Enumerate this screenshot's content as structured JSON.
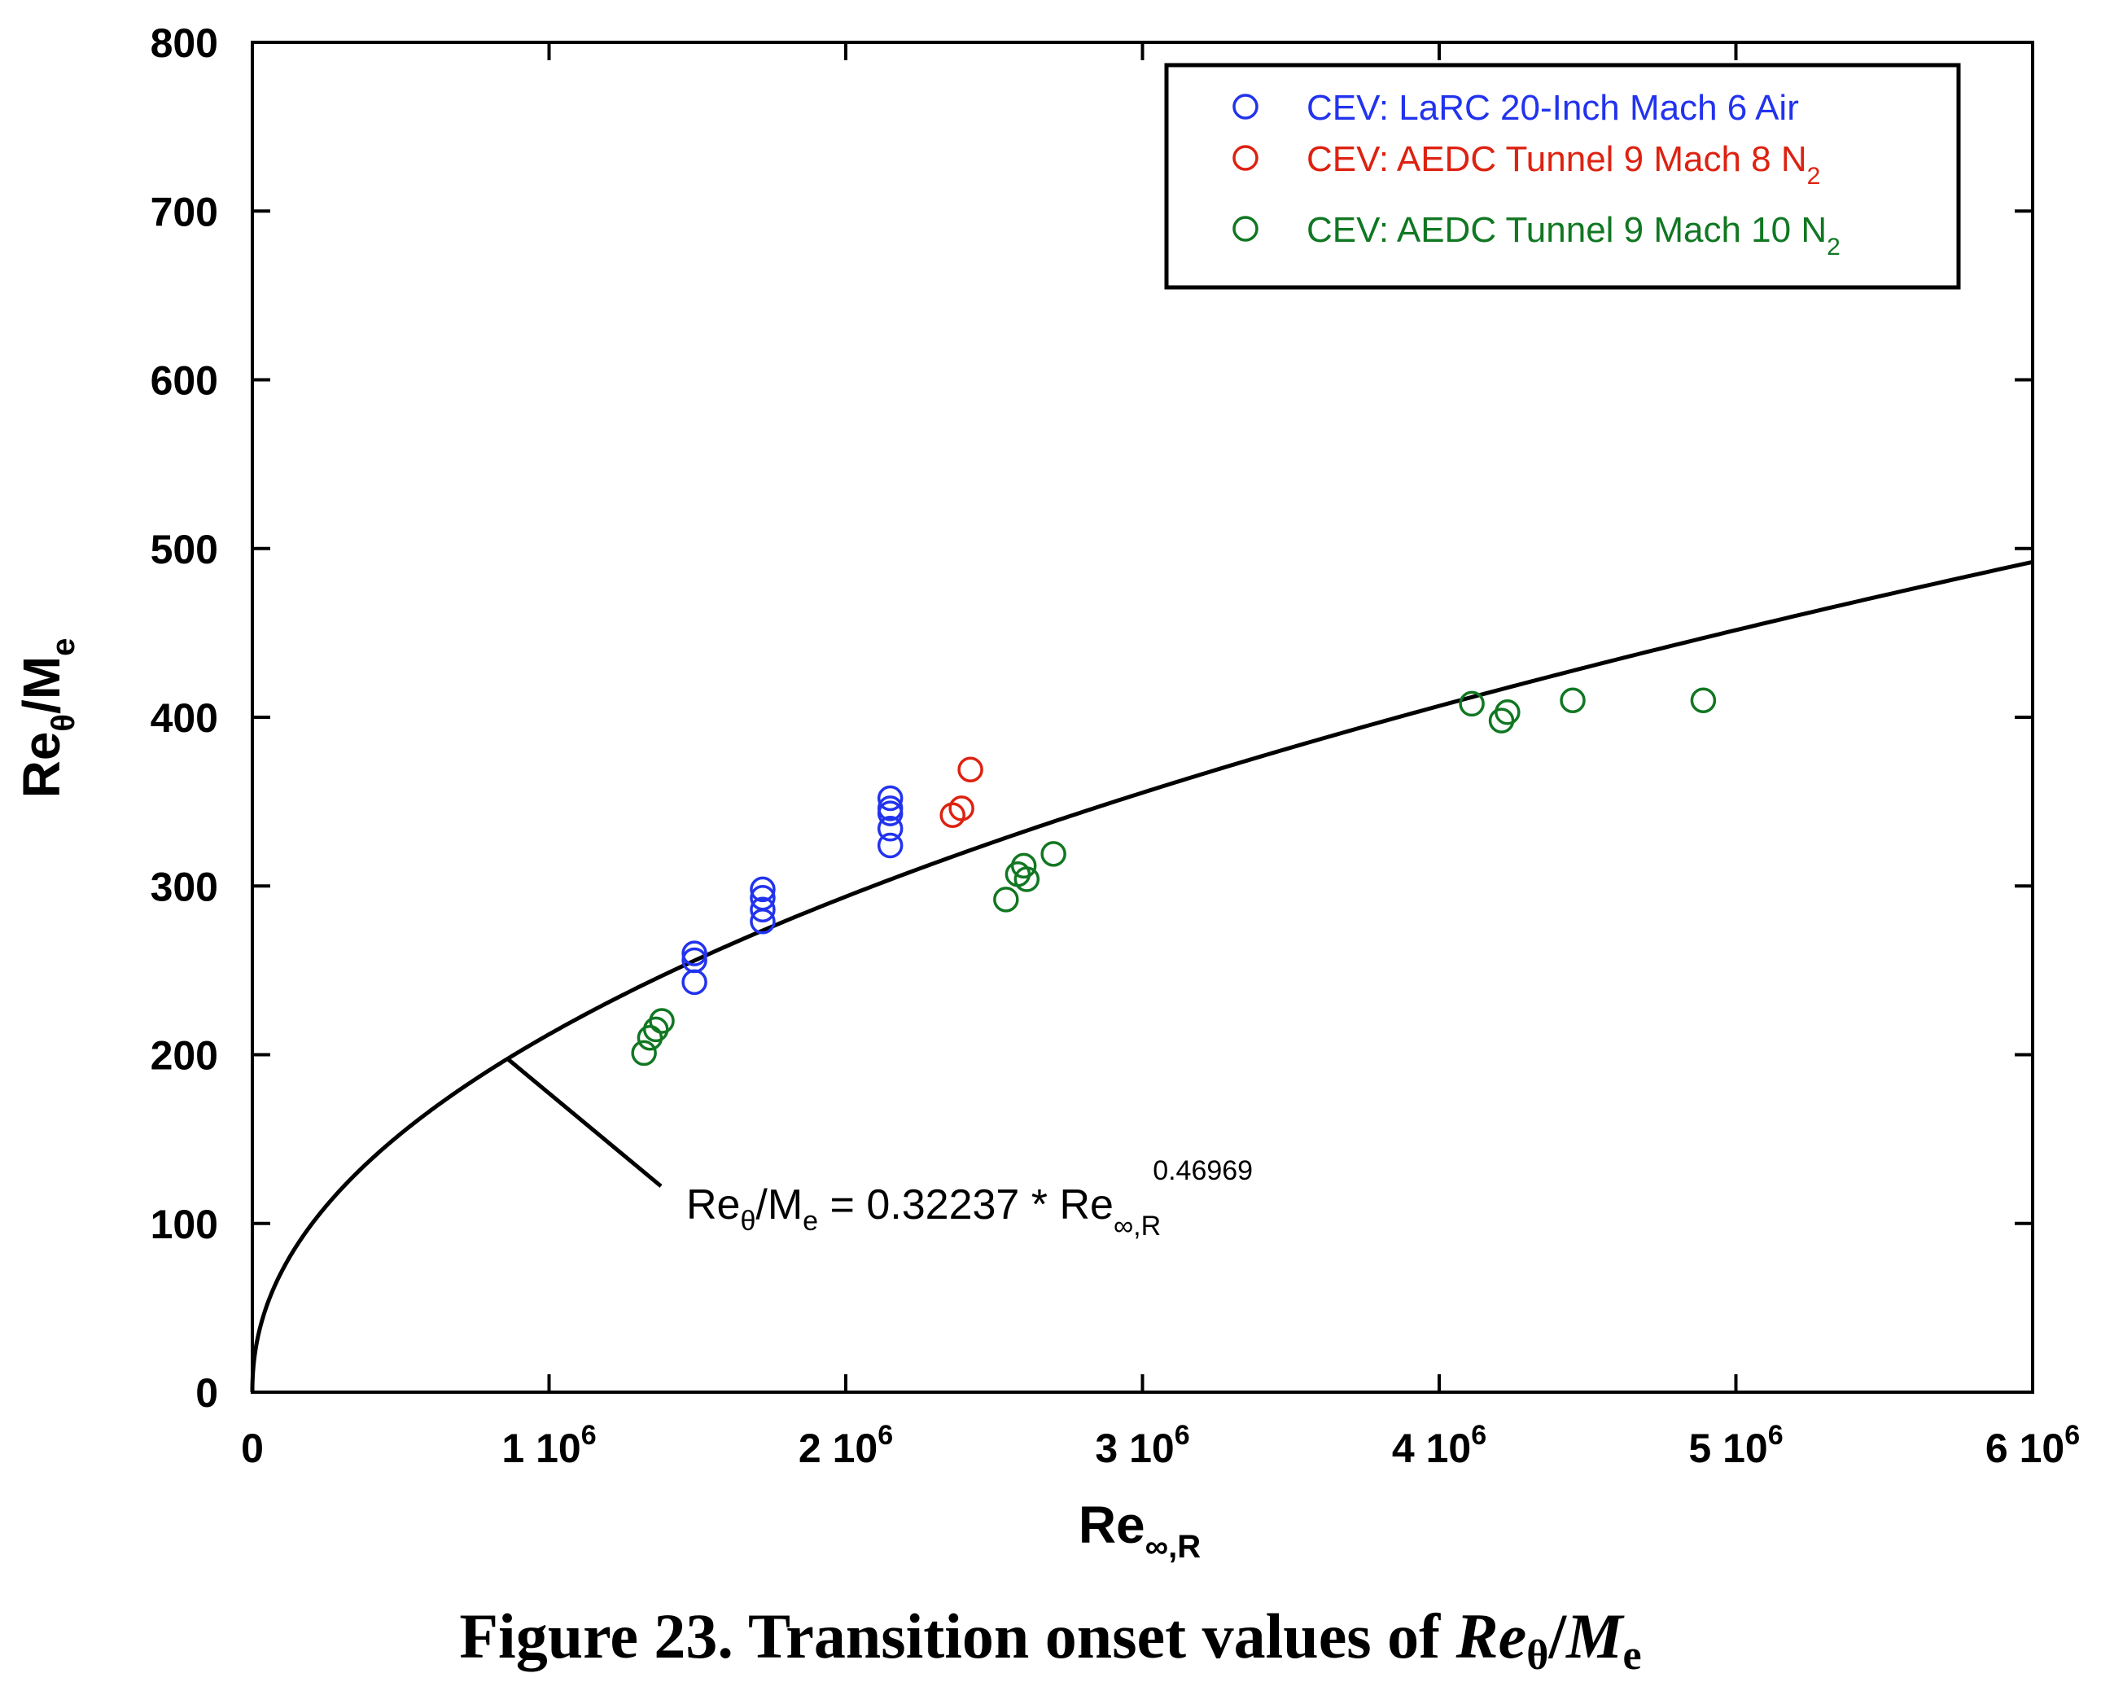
{
  "chart_data": {
    "type": "scatter",
    "title": "",
    "caption": {
      "prefix": "Figure 23. Transition onset values of ",
      "re": "Re",
      "theta": "θ",
      "slash": "/",
      "m": "M",
      "e": "e"
    },
    "xlabel": {
      "main": "Re",
      "sub": "∞,R"
    },
    "ylabel": {
      "main": "Re",
      "sub1": "θ",
      "mid": "/M",
      "sub2": "e"
    },
    "xlim": [
      0,
      6000000
    ],
    "ylim": [
      0,
      800
    ],
    "grid": false,
    "legend_position": "top-right",
    "x_ticks": [
      {
        "value": 0,
        "base": "0",
        "exp": ""
      },
      {
        "value": 1000000,
        "base": "1 10",
        "exp": "6"
      },
      {
        "value": 2000000,
        "base": "2 10",
        "exp": "6"
      },
      {
        "value": 3000000,
        "base": "3 10",
        "exp": "6"
      },
      {
        "value": 4000000,
        "base": "4 10",
        "exp": "6"
      },
      {
        "value": 5000000,
        "base": "5 10",
        "exp": "6"
      },
      {
        "value": 6000000,
        "base": "6 10",
        "exp": "6"
      }
    ],
    "y_ticks": [
      {
        "value": 0,
        "label": "0"
      },
      {
        "value": 100,
        "label": "100"
      },
      {
        "value": 200,
        "label": "200"
      },
      {
        "value": 300,
        "label": "300"
      },
      {
        "value": 400,
        "label": "400"
      },
      {
        "value": 500,
        "label": "500"
      },
      {
        "value": 600,
        "label": "600"
      },
      {
        "value": 700,
        "label": "700"
      },
      {
        "value": 800,
        "label": "800"
      }
    ],
    "series": [
      {
        "name": "CEV: LaRC 20-Inch Mach 6 Air",
        "name_sub": "",
        "color": "#2233ee",
        "marker": "open-circle",
        "points": [
          [
            1490000,
            260
          ],
          [
            1490000,
            256
          ],
          [
            1490000,
            243
          ],
          [
            1720000,
            298
          ],
          [
            1720000,
            293
          ],
          [
            1720000,
            286
          ],
          [
            1720000,
            279
          ],
          [
            2150000,
            352
          ],
          [
            2150000,
            346
          ],
          [
            2150000,
            343
          ],
          [
            2150000,
            334
          ],
          [
            2150000,
            324
          ]
        ]
      },
      {
        "name": "CEV: AEDC Tunnel 9 Mach 8 N",
        "name_sub": "2",
        "color": "#dd2211",
        "marker": "open-circle",
        "points": [
          [
            2360000,
            342
          ],
          [
            2390000,
            346
          ],
          [
            2420000,
            369
          ]
        ]
      },
      {
        "name": "CEV: AEDC Tunnel 9 Mach 10 N",
        "name_sub": "2",
        "color": "#117722",
        "marker": "open-circle",
        "points": [
          [
            1320000,
            201
          ],
          [
            1340000,
            210
          ],
          [
            1360000,
            215
          ],
          [
            1380000,
            220
          ],
          [
            2540000,
            292
          ],
          [
            2580000,
            307
          ],
          [
            2600000,
            312
          ],
          [
            2610000,
            304
          ],
          [
            2700000,
            319
          ],
          [
            4110000,
            408
          ],
          [
            4210000,
            398
          ],
          [
            4230000,
            403
          ],
          [
            4450000,
            410
          ],
          [
            4890000,
            410
          ]
        ]
      }
    ],
    "fit_curve": {
      "coefficient": 0.32237,
      "exponent": 0.46969,
      "color": "#000000",
      "label": {
        "lhs_main": "Re",
        "lhs_sub1": "θ",
        "lhs_mid": "/M",
        "lhs_sub2": "e",
        "eq": " = 0.32237 * Re",
        "rhs_sub": "∞,R",
        "rhs_sup": "0.46969"
      },
      "leader_from_x": 860000
    }
  }
}
